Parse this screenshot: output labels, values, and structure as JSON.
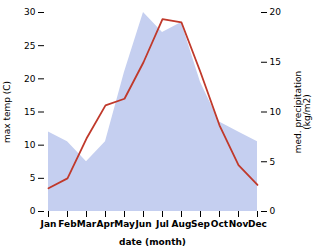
{
  "chart_data": {
    "type": "line",
    "xlabel": "date (month)",
    "ylabel": "max temp (C)",
    "y2label": "med. precipitation\n(kg/m2)",
    "categories": [
      "Jan",
      "Feb",
      "Mar",
      "Apr",
      "May",
      "Jun",
      "Jul",
      "Aug",
      "Sep",
      "Oct",
      "Nov",
      "Dec"
    ],
    "series": [
      {
        "type": "area",
        "color": "#c5cff0",
        "axis": "y2",
        "values": [
          8,
          7,
          5,
          7,
          14,
          20,
          18,
          19,
          13,
          9,
          8,
          7
        ]
      },
      {
        "type": "line",
        "color": "#c0392b",
        "values": [
          3.5,
          5,
          11,
          16,
          17,
          22.5,
          29,
          28.5,
          21,
          13,
          7,
          4
        ]
      }
    ],
    "ylim": [
      0,
      30
    ],
    "yticks": [
      0,
      5,
      10,
      15,
      20,
      25,
      30
    ],
    "y2lim": [
      0,
      20
    ],
    "y2ticks": [
      0,
      5,
      10,
      15,
      20
    ]
  }
}
